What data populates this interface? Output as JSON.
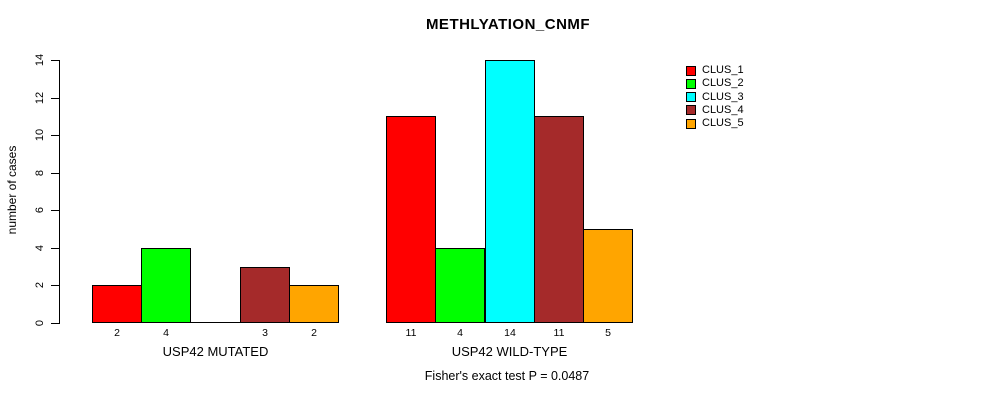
{
  "chart_data": {
    "type": "bar",
    "title": "METHLYATION_CNMF",
    "ylabel": "number of cases",
    "footnote": "Fisher's exact test P = 0.0487",
    "categories": [
      "USP42 MUTATED",
      "USP42 WILD-TYPE"
    ],
    "series": [
      {
        "name": "CLUS_1",
        "color": "#FF0000",
        "values": [
          2,
          11
        ]
      },
      {
        "name": "CLUS_2",
        "color": "#00FF00",
        "values": [
          4,
          4
        ]
      },
      {
        "name": "CLUS_3",
        "color": "#00FFFF",
        "values": [
          0,
          14
        ]
      },
      {
        "name": "CLUS_4",
        "color": "#A52A2A",
        "values": [
          3,
          11
        ]
      },
      {
        "name": "CLUS_5",
        "color": "#FFA500",
        "values": [
          2,
          5
        ]
      }
    ],
    "bar_value_labels": true,
    "hide_zero_value_labels": true,
    "yticks": [
      0,
      2,
      4,
      6,
      8,
      10,
      12,
      14
    ],
    "ylim": [
      0,
      14
    ],
    "grid": false,
    "legend_position": "top-right",
    "axis_color": "#000000",
    "background": "#FFFFFF"
  }
}
